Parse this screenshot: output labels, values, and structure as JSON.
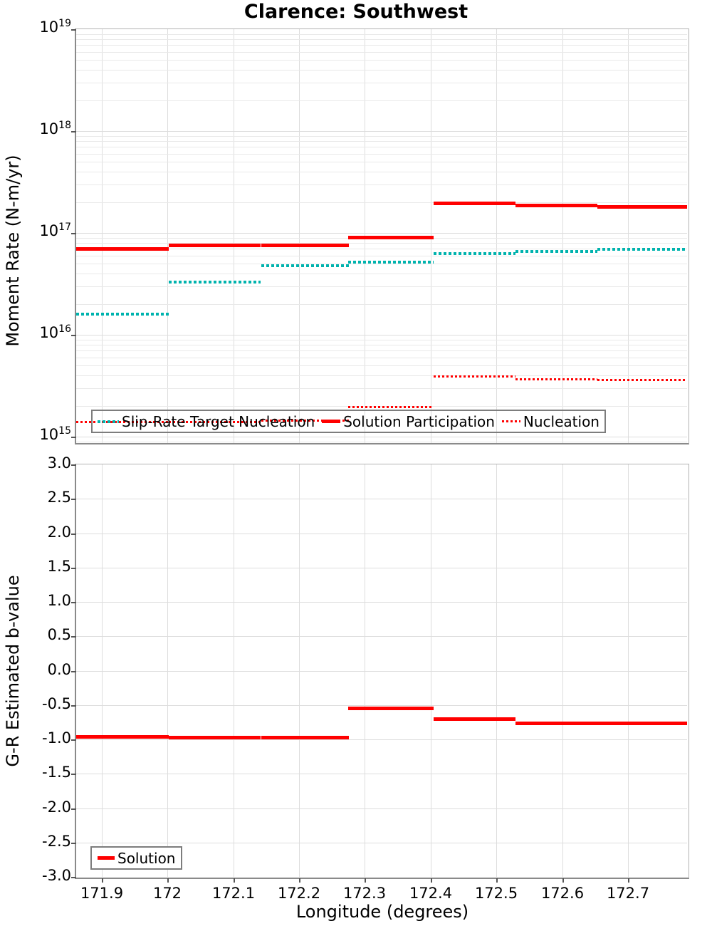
{
  "chart_data": [
    {
      "type": "line",
      "panel": "moment-rate",
      "title": "Clarence: Southwest",
      "ylabel": "Moment Rate (N-m/yr)",
      "yscale": "log",
      "ylim": [
        865000000000000.0,
        1e+19
      ],
      "ytick_exponents": [
        19,
        18,
        17,
        16,
        15
      ],
      "ytick_base": "10",
      "xlim": [
        171.861,
        172.79
      ],
      "xticks": [
        171.9,
        172.0,
        172.1,
        172.2,
        172.3,
        172.4,
        172.5,
        172.6,
        172.7
      ],
      "show_xtick_labels": false,
      "grid": true,
      "legend_position": "lower-left",
      "x_edges": [
        171.861,
        172.002,
        172.142,
        172.275,
        172.405,
        172.529,
        172.654,
        172.79
      ],
      "series": [
        {
          "name": "Slip-Rate Target Nucleation",
          "color": "#00b3ae",
          "style": "dotted",
          "line_width": 4,
          "values": [
            1.6e+16,
            3.3e+16,
            4.8e+16,
            5.2e+16,
            6.3e+16,
            6.6e+16,
            6.9e+16
          ]
        },
        {
          "name": "Solution Participation",
          "color": "#ff0000",
          "style": "solid",
          "line_width": 5,
          "values": [
            7e+16,
            7.5e+16,
            7.6e+16,
            9e+16,
            1.95e+17,
            1.85e+17,
            1.8e+17
          ]
        },
        {
          "name": "Nucleation",
          "color": "#ff0000",
          "style": "dotted",
          "line_width": 3,
          "values": [
            1380000000000000.0,
            1400000000000000.0,
            1430000000000000.0,
            1950000000000000.0,
            3900000000000000.0,
            3650000000000000.0,
            3600000000000000.0
          ]
        }
      ]
    },
    {
      "type": "line",
      "panel": "b-value",
      "ylabel": "G-R Estimated b-value",
      "xlabel": "Longitude (degrees)",
      "yscale": "linear",
      "ylim": [
        -3.0,
        3.0
      ],
      "yticks": [
        3.0,
        2.5,
        2.0,
        1.5,
        1.0,
        0.5,
        0.0,
        -0.5,
        -1.0,
        -1.5,
        -2.0,
        -2.5,
        -3.0
      ],
      "ytick_labels": [
        "3.0",
        "2.5",
        "2.0",
        "1.5",
        "1.0",
        "0.5",
        "0.0",
        "-0.5",
        "-1.0",
        "-1.5",
        "-2.0",
        "-2.5",
        "-3.0"
      ],
      "xlim": [
        171.861,
        172.79
      ],
      "xticks": [
        171.9,
        172.0,
        172.1,
        172.2,
        172.3,
        172.4,
        172.5,
        172.6,
        172.7
      ],
      "xtick_labels": [
        "171.9",
        "172",
        "172.1",
        "172.2",
        "172.3",
        "172.4",
        "172.5",
        "172.6",
        "172.7"
      ],
      "show_xtick_labels": true,
      "grid": true,
      "legend_position": "lower-left",
      "x_edges": [
        171.861,
        172.002,
        172.142,
        172.275,
        172.405,
        172.529,
        172.654,
        172.79
      ],
      "series": [
        {
          "name": "Solution",
          "color": "#ff0000",
          "style": "solid",
          "line_width": 5,
          "values": [
            -0.96,
            -0.97,
            -0.97,
            -0.55,
            -0.7,
            -0.77,
            -0.77
          ]
        }
      ]
    }
  ],
  "style": {
    "teal": "#00b3ae",
    "red": "#ff0000",
    "grid_minor": "#e9e9e9",
    "grid_major": "#dddddd",
    "legend_border": "#7d7d7d"
  }
}
